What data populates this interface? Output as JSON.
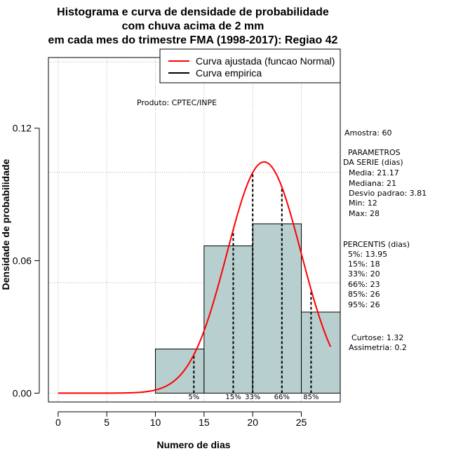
{
  "chart_data": {
    "type": "histogram",
    "title_lines": [
      "Histograma e curva de densidade de probabilidade",
      "com chuva acima de 2 mm",
      "em cada mes do trimestre FMA (1998-2017): Regiao 42"
    ],
    "xlabel": "Numero de dias",
    "ylabel": "Densidade de probabilidade",
    "xlim": [
      -1,
      29
    ],
    "ylim": [
      -0.004,
      0.152
    ],
    "xticks": [
      0,
      5,
      10,
      15,
      20,
      25
    ],
    "yticks": [
      0.0,
      0.06,
      0.12
    ],
    "ytick_labels": [
      "0.00",
      "0.06",
      "0.12"
    ],
    "grid_x": [
      0,
      5,
      10,
      15,
      20,
      25
    ],
    "grid_y": [
      0.0,
      0.05,
      0.1,
      0.15
    ],
    "bins": [
      {
        "from": 10,
        "to": 15,
        "density": 0.02
      },
      {
        "from": 15,
        "to": 20,
        "density": 0.0667
      },
      {
        "from": 20,
        "to": 25,
        "density": 0.0767
      },
      {
        "from": 25,
        "to": 29,
        "density": 0.0367
      }
    ],
    "normal_curve": {
      "mean": 21.17,
      "sd": 3.81,
      "x_from": 0,
      "x_to": 28
    },
    "percentile_lines": [
      {
        "label": "5%",
        "value": 13.95
      },
      {
        "label": "15%",
        "value": 18
      },
      {
        "label": "33%",
        "value": 20
      },
      {
        "label": "66%",
        "value": 23
      },
      {
        "label": "85%",
        "value": 26
      }
    ],
    "legend": [
      {
        "label": "Curva ajustada (funcao Normal)",
        "color": "#ff0000"
      },
      {
        "label": "Curva empirica",
        "color": "#000000"
      }
    ],
    "bar_color": "#b7cfce",
    "curve_color": "#ff0000",
    "credit": "Produto: CPTEC/INPE"
  },
  "stats_panel": {
    "sample": "Amostra: 60",
    "params_title_1": "PARAMETROS",
    "params_title_2": "DA SERIE (dias)",
    "params": [
      "Media: 21.17",
      "Mediana: 21",
      "Desvio padrao: 3.81",
      "Min: 12",
      "Max: 28"
    ],
    "percentis_title": "PERCENTIS (dias)",
    "percentis": [
      "5%: 13.95",
      "15%: 18",
      "33%: 20",
      "66%: 23",
      "85%: 26",
      "95%: 26"
    ],
    "kurtosis": "Curtose: 1.32",
    "skewness": "Assimetria: 0.2"
  }
}
